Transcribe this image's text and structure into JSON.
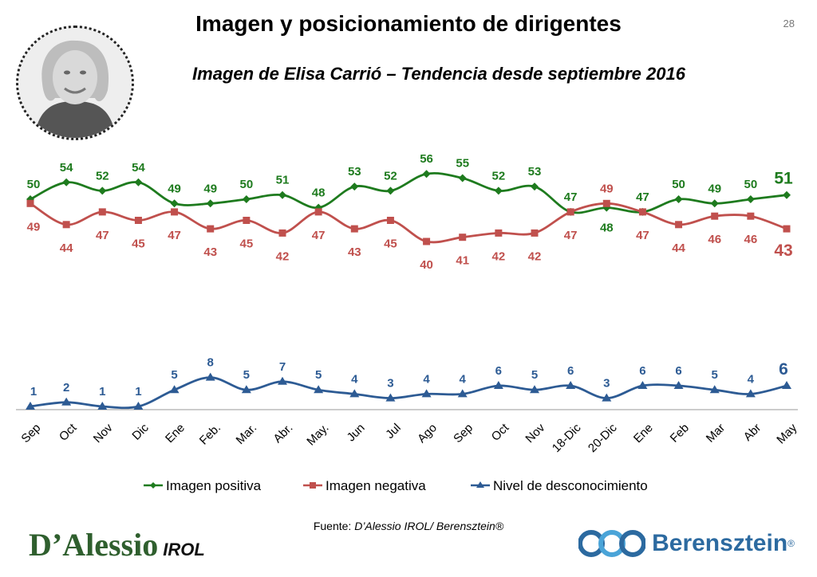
{
  "header": {
    "title": "Imagen y posicionamiento de dirigentes",
    "page_number": "28",
    "subtitle": "Imagen de Elisa Carrió – Tendencia desde septiembre 2016"
  },
  "footer": {
    "source_label": "Fuente: ",
    "source_value": "D’Alessio IROL/ Berensztein®",
    "logo_left_main": "D’Alessio",
    "logo_left_sub": "IROL",
    "logo_right_name": "Berensztein",
    "logo_right_reg": "®"
  },
  "chart_data": {
    "type": "line",
    "categories": [
      "Sep",
      "Oct",
      "Nov",
      "Dic",
      "Ene",
      "Feb.",
      "Mar.",
      "Abr.",
      "May.",
      "Jun",
      "Jul",
      "Ago",
      "Sep",
      "Oct",
      "Nov",
      "18-Dic",
      "20-Dic",
      "Ene",
      "Feb",
      "Mar",
      "Abr",
      "May"
    ],
    "series": [
      {
        "name": "Imagen positiva",
        "color": "#1e7b1e",
        "marker": "diamond",
        "values": [
          50,
          54,
          52,
          54,
          49,
          49,
          50,
          51,
          48,
          53,
          52,
          56,
          55,
          52,
          53,
          47,
          48,
          47,
          50,
          49,
          50,
          51
        ]
      },
      {
        "name": "Imagen negativa",
        "color": "#c0504d",
        "marker": "square",
        "values": [
          49,
          44,
          47,
          45,
          47,
          43,
          45,
          42,
          47,
          43,
          45,
          40,
          41,
          42,
          42,
          47,
          49,
          47,
          44,
          46,
          46,
          43
        ]
      },
      {
        "name": "Nivel de desconocimiento",
        "color": "#2d5b94",
        "marker": "triangle",
        "values": [
          1,
          2,
          1,
          1,
          5,
          8,
          5,
          7,
          5,
          4,
          3,
          4,
          4,
          6,
          5,
          6,
          3,
          6,
          6,
          5,
          4,
          6
        ]
      }
    ],
    "legend_position": "bottom",
    "grid": false
  }
}
